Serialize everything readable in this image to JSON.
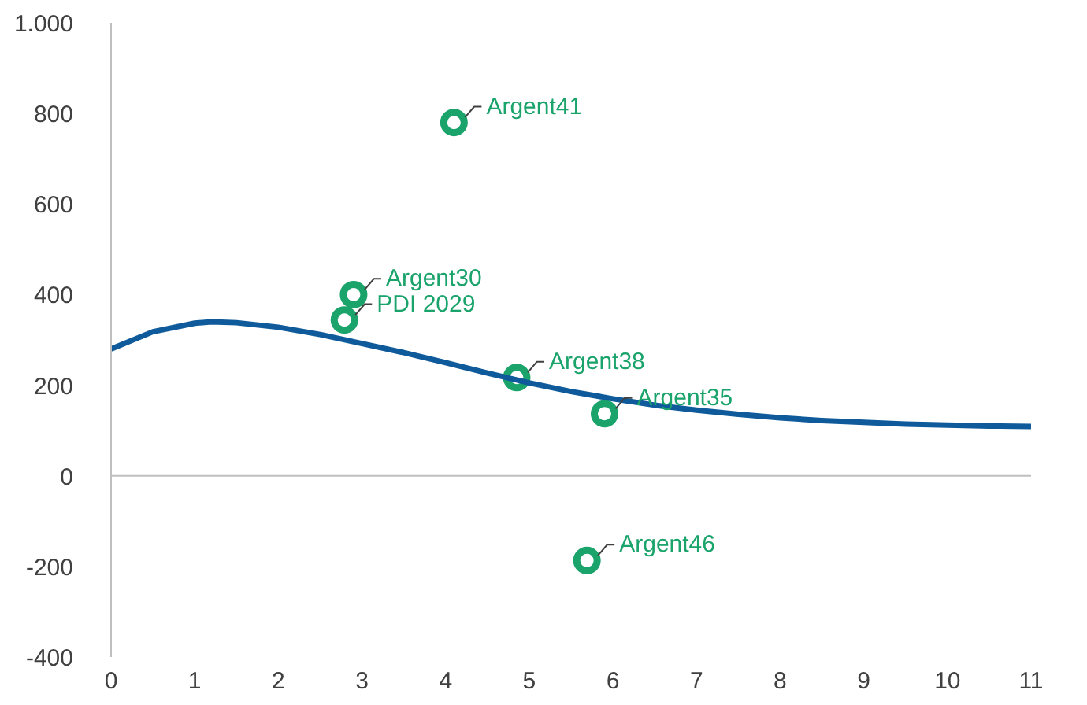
{
  "chart_data": {
    "type": "scatter",
    "xlim": [
      0,
      11
    ],
    "xticks": [
      0,
      1,
      2,
      3,
      4,
      5,
      6,
      7,
      8,
      9,
      10,
      11
    ],
    "ylim": [
      -400,
      1000
    ],
    "yticks": [
      -400,
      -200,
      0,
      200,
      400,
      600,
      800,
      {
        "value": 1000,
        "label": "1.000"
      }
    ],
    "series": [
      {
        "color": "#1aa36b",
        "x": [
          4.1,
          2.9,
          2.79,
          4.85,
          5.9,
          5.69
        ],
        "values": [
          780,
          400,
          344,
          217,
          137,
          -187
        ],
        "marker": "circle"
      },
      {
        "type": "line",
        "color": "#0f5a9a",
        "x": [
          0,
          0.5,
          1,
          1.2,
          1.5,
          2,
          2.5,
          3,
          3.5,
          4,
          4.5,
          5,
          5.5,
          6,
          6.5,
          7,
          7.5,
          8,
          8.5,
          9,
          9.5,
          10,
          10.5,
          11
        ],
        "values": [
          280,
          318,
          337,
          340,
          338,
          328,
          312,
          292,
          272,
          250,
          227,
          205,
          186,
          170,
          156,
          145,
          136,
          128,
          122,
          118,
          114,
          112,
          110,
          109
        ]
      }
    ],
    "annotations": [
      {
        "text": "Argent41",
        "x": 4.1,
        "y": 780
      },
      {
        "text": "Argent30",
        "x": 2.9,
        "y": 400
      },
      {
        "text": "PDI 2029",
        "x": 2.79,
        "y": 344
      },
      {
        "text": "Argent38",
        "x": 4.85,
        "y": 217
      },
      {
        "text": "Argent35",
        "x": 5.9,
        "y": 137
      },
      {
        "text": "Argent46",
        "x": 5.69,
        "y": -187
      }
    ]
  }
}
